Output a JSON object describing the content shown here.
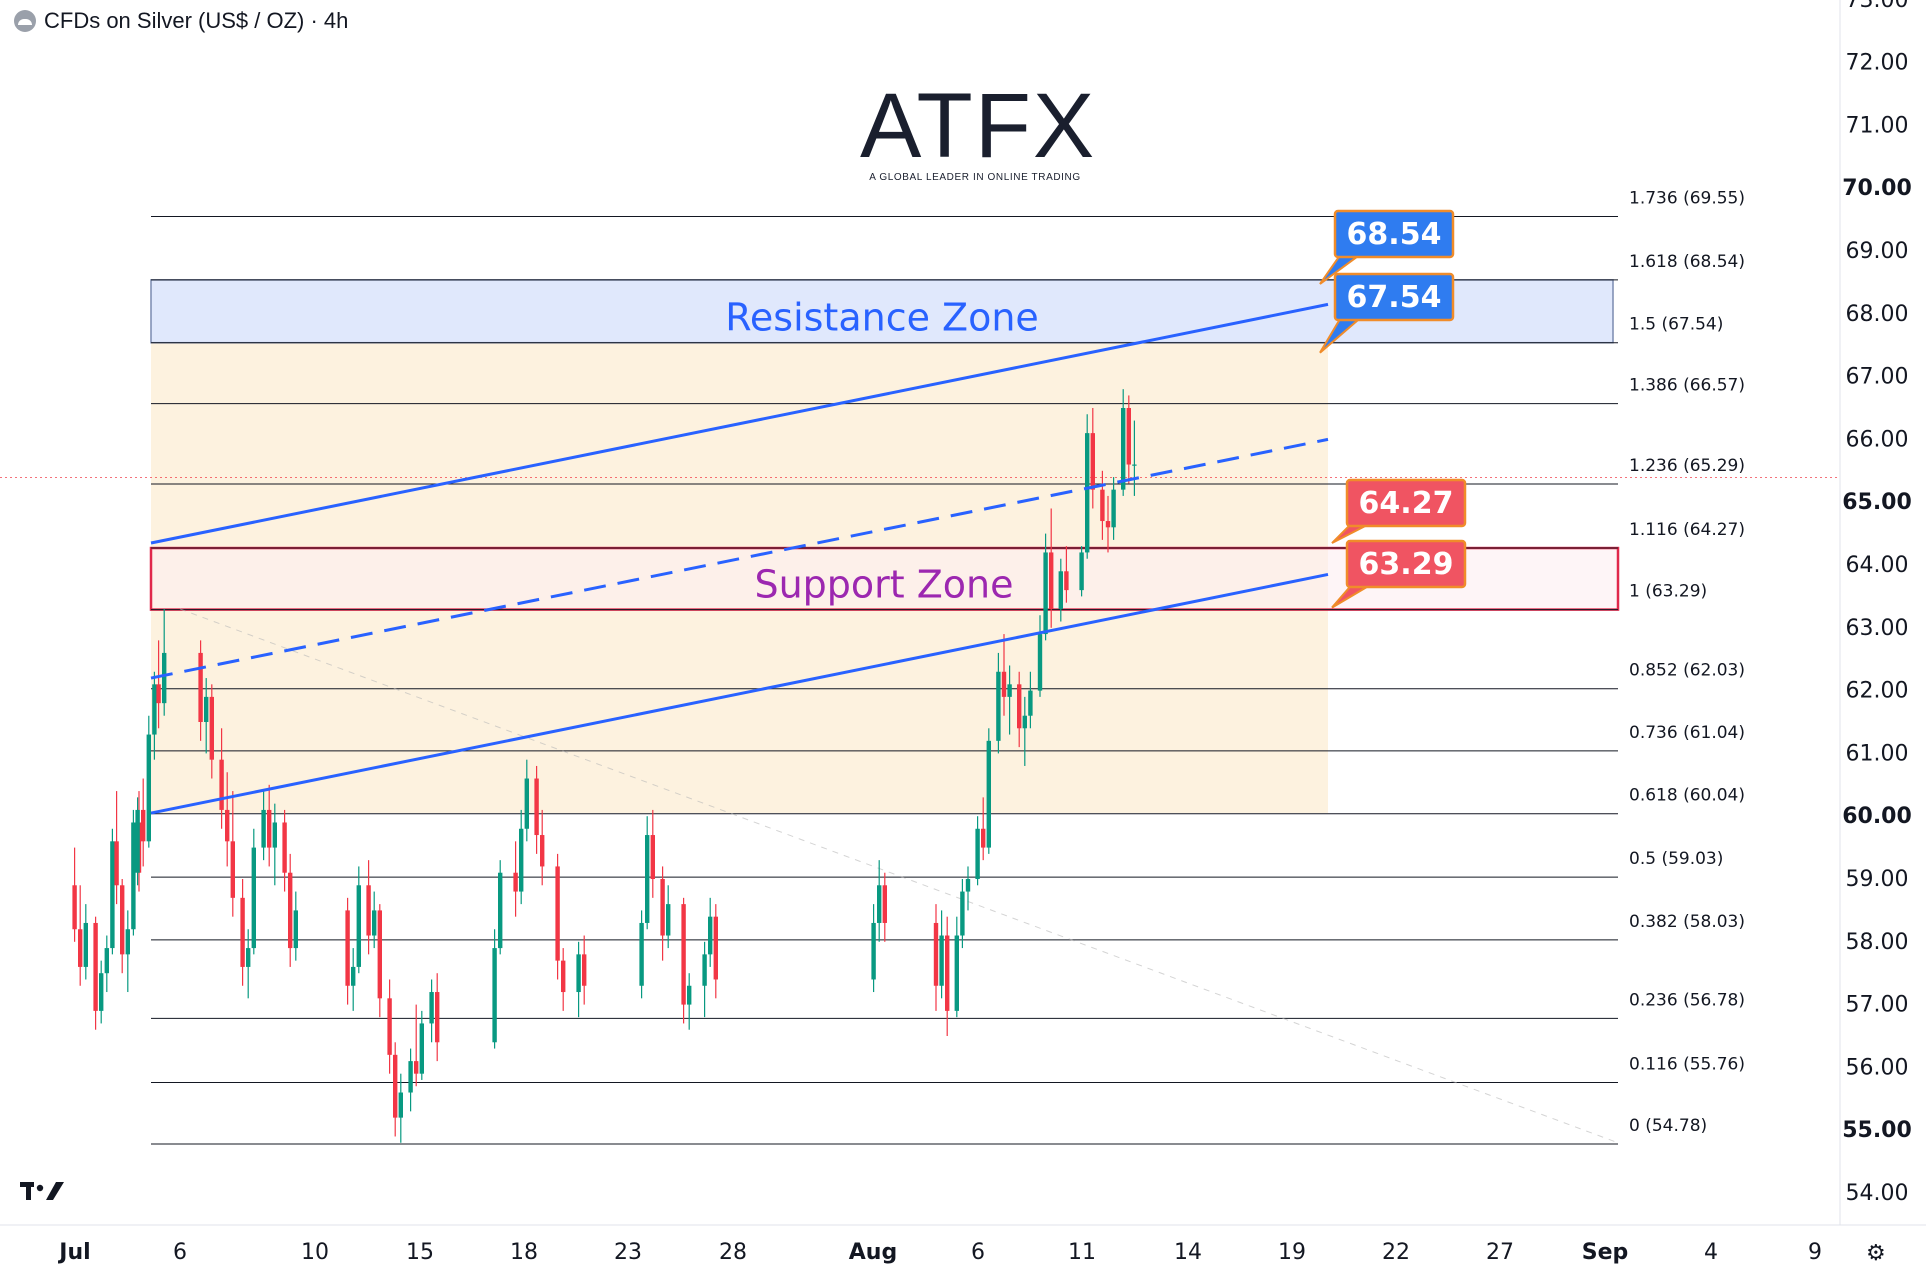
{
  "header": {
    "title": "CFDs on Silver (US$ / OZ) · 4h"
  },
  "logo": {
    "word": "ATFX",
    "tagline": "A GLOBAL LEADER IN ONLINE TRADING"
  },
  "colors": {
    "up": "#089981",
    "down": "#f23645",
    "channel": "#2962ff",
    "resistance_fill": "#dbe4fb",
    "support_fill": "#fdeef2",
    "support_border": "#e0284b",
    "label_blue": "#2f7cf0",
    "label_red": "#f05462",
    "label_border": "#f08c2a",
    "orange_fill": "#fdf1dc"
  },
  "chart_data": {
    "type": "candlestick",
    "symbol": "CFDs on Silver (US$ / OZ)",
    "timeframe": "4h",
    "ylim": [
      54.0,
      73.0
    ],
    "y_ticks": [
      "54.00",
      "55.00",
      "56.00",
      "57.00",
      "58.00",
      "59.00",
      "60.00",
      "61.00",
      "62.00",
      "63.00",
      "64.00",
      "65.00",
      "66.00",
      "67.00",
      "68.00",
      "69.00",
      "70.00",
      "71.00",
      "72.00",
      "73.00"
    ],
    "x_ticks": [
      "Jul",
      "6",
      "10",
      "15",
      "18",
      "23",
      "28",
      "Aug",
      "6",
      "11",
      "14",
      "19",
      "22",
      "27",
      "Sep",
      "4",
      "9"
    ],
    "fib_levels": [
      {
        "ratio": "1.736",
        "value": 69.55,
        "label": "1.736 (69.55)"
      },
      {
        "ratio": "1.618",
        "value": 68.54,
        "label": "1.618 (68.54)"
      },
      {
        "ratio": "1.5",
        "value": 67.54,
        "label": "1.5 (67.54)"
      },
      {
        "ratio": "1.386",
        "value": 66.57,
        "label": "1.386 (66.57)"
      },
      {
        "ratio": "1.236",
        "value": 65.29,
        "label": "1.236 (65.29)"
      },
      {
        "ratio": "1.116",
        "value": 64.27,
        "label": "1.116 (64.27)"
      },
      {
        "ratio": "1",
        "value": 63.29,
        "label": "1 (63.29)"
      },
      {
        "ratio": "0.852",
        "value": 62.03,
        "label": "0.852 (62.03)"
      },
      {
        "ratio": "0.736",
        "value": 61.04,
        "label": "0.736 (61.04)"
      },
      {
        "ratio": "0.618",
        "value": 60.04,
        "label": "0.618 (60.04)"
      },
      {
        "ratio": "0.5",
        "value": 59.03,
        "label": "0.5 (59.03)"
      },
      {
        "ratio": "0.382",
        "value": 58.03,
        "label": "0.382 (58.03)"
      },
      {
        "ratio": "0.236",
        "value": 56.78,
        "label": "0.236 (56.78)"
      },
      {
        "ratio": "0.116",
        "value": 55.76,
        "label": "0.116 (55.76)"
      },
      {
        "ratio": "0",
        "value": 54.78,
        "label": "0 (54.78)"
      }
    ],
    "zones": [
      {
        "name": "Resistance Zone",
        "low": 67.54,
        "high": 68.54
      },
      {
        "name": "Support Zone",
        "low": 63.29,
        "high": 64.27
      }
    ],
    "price_labels": [
      {
        "text": "68.54",
        "value": 68.54,
        "color": "blue"
      },
      {
        "text": "67.54",
        "value": 67.54,
        "color": "blue"
      },
      {
        "text": "64.27",
        "value": 64.27,
        "color": "red"
      },
      {
        "text": "63.29",
        "value": 63.29,
        "color": "red"
      }
    ],
    "channel": {
      "upper": [
        [
          "Jul 4",
          64.35
        ],
        [
          "Aug 20",
          68.15
        ]
      ],
      "middle": [
        [
          "Jul 4",
          62.2
        ],
        [
          "Aug 20",
          66.0
        ]
      ],
      "lower": [
        [
          "Jul 4",
          60.05
        ],
        [
          "Aug 20",
          63.85
        ]
      ]
    },
    "current_price": 65.6,
    "candles": [
      {
        "t": "Jul 1",
        "o": 58.9,
        "h": 59.5,
        "l": 58.0,
        "c": 58.2
      },
      {
        "t": "Jul 1",
        "o": 58.2,
        "h": 58.9,
        "l": 57.3,
        "c": 57.6
      },
      {
        "t": "Jul 1",
        "o": 57.6,
        "h": 58.6,
        "l": 57.4,
        "c": 58.3
      },
      {
        "t": "Jul 2",
        "o": 58.3,
        "h": 58.4,
        "l": 56.6,
        "c": 56.9
      },
      {
        "t": "Jul 2",
        "o": 56.9,
        "h": 57.7,
        "l": 56.7,
        "c": 57.5
      },
      {
        "t": "Jul 2",
        "o": 57.5,
        "h": 58.1,
        "l": 57.2,
        "c": 57.9
      },
      {
        "t": "Jul 2",
        "o": 57.9,
        "h": 59.8,
        "l": 57.8,
        "c": 59.6
      },
      {
        "t": "Jul 3",
        "o": 59.6,
        "h": 60.4,
        "l": 58.6,
        "c": 58.9
      },
      {
        "t": "Jul 3",
        "o": 58.9,
        "h": 59.0,
        "l": 57.5,
        "c": 57.8
      },
      {
        "t": "Jul 3",
        "o": 57.8,
        "h": 58.5,
        "l": 57.2,
        "c": 58.2
      },
      {
        "t": "Jul 3",
        "o": 58.2,
        "h": 60.1,
        "l": 58.1,
        "c": 59.9
      },
      {
        "t": "Jul 3",
        "o": 59.9,
        "h": 60.4,
        "l": 58.8,
        "c": 59.1
      },
      {
        "t": "Jul 4",
        "o": 59.1,
        "h": 60.3,
        "l": 58.9,
        "c": 60.1
      },
      {
        "t": "Jul 4",
        "o": 60.1,
        "h": 60.6,
        "l": 59.2,
        "c": 59.6
      },
      {
        "t": "Jul 4",
        "o": 59.6,
        "h": 61.6,
        "l": 59.5,
        "c": 61.3
      },
      {
        "t": "Jul 4",
        "o": 61.3,
        "h": 62.3,
        "l": 60.9,
        "c": 62.1
      },
      {
        "t": "Jul 5",
        "o": 62.1,
        "h": 62.8,
        "l": 61.4,
        "c": 61.8
      },
      {
        "t": "Jul 5",
        "o": 61.8,
        "h": 63.3,
        "l": 61.6,
        "c": 62.6
      },
      {
        "t": "Jul 7",
        "o": 62.6,
        "h": 62.8,
        "l": 61.2,
        "c": 61.5
      },
      {
        "t": "Jul 7",
        "o": 61.5,
        "h": 62.2,
        "l": 61.0,
        "c": 61.9
      },
      {
        "t": "Jul 7",
        "o": 61.9,
        "h": 62.1,
        "l": 60.6,
        "c": 60.9
      },
      {
        "t": "Jul 8",
        "o": 60.9,
        "h": 61.4,
        "l": 59.8,
        "c": 60.1
      },
      {
        "t": "Jul 8",
        "o": 60.1,
        "h": 60.7,
        "l": 59.2,
        "c": 59.6
      },
      {
        "t": "Jul 8",
        "o": 59.6,
        "h": 60.4,
        "l": 58.4,
        "c": 58.7
      },
      {
        "t": "Jul 9",
        "o": 58.7,
        "h": 59.0,
        "l": 57.3,
        "c": 57.6
      },
      {
        "t": "Jul 9",
        "o": 57.6,
        "h": 58.2,
        "l": 57.1,
        "c": 57.9
      },
      {
        "t": "Jul 9",
        "o": 57.9,
        "h": 59.8,
        "l": 57.8,
        "c": 59.5
      },
      {
        "t": "Jul 10",
        "o": 59.5,
        "h": 60.4,
        "l": 59.3,
        "c": 60.1
      },
      {
        "t": "Jul 10",
        "o": 60.1,
        "h": 60.5,
        "l": 59.2,
        "c": 59.5
      },
      {
        "t": "Jul 10",
        "o": 59.5,
        "h": 60.2,
        "l": 58.9,
        "c": 59.9
      },
      {
        "t": "Jul 11",
        "o": 59.9,
        "h": 60.1,
        "l": 58.8,
        "c": 59.1
      },
      {
        "t": "Jul 11",
        "o": 59.1,
        "h": 59.4,
        "l": 57.6,
        "c": 57.9
      },
      {
        "t": "Jul 11",
        "o": 57.9,
        "h": 58.8,
        "l": 57.7,
        "c": 58.5
      },
      {
        "t": "Jul 14",
        "o": 58.5,
        "h": 58.7,
        "l": 57.0,
        "c": 57.3
      },
      {
        "t": "Jul 14",
        "o": 57.3,
        "h": 57.9,
        "l": 56.9,
        "c": 57.6
      },
      {
        "t": "Jul 14",
        "o": 57.6,
        "h": 59.2,
        "l": 57.5,
        "c": 58.9
      },
      {
        "t": "Jul 15",
        "o": 58.9,
        "h": 59.3,
        "l": 57.8,
        "c": 58.1
      },
      {
        "t": "Jul 15",
        "o": 58.1,
        "h": 58.8,
        "l": 57.9,
        "c": 58.5
      },
      {
        "t": "Jul 15",
        "o": 58.5,
        "h": 58.6,
        "l": 56.8,
        "c": 57.1
      },
      {
        "t": "Jul 16",
        "o": 57.1,
        "h": 57.4,
        "l": 55.9,
        "c": 56.2
      },
      {
        "t": "Jul 16",
        "o": 56.2,
        "h": 56.4,
        "l": 54.9,
        "c": 55.2
      },
      {
        "t": "Jul 16",
        "o": 55.2,
        "h": 55.9,
        "l": 54.8,
        "c": 55.6
      },
      {
        "t": "Jul 17",
        "o": 55.6,
        "h": 56.3,
        "l": 55.3,
        "c": 56.1
      },
      {
        "t": "Jul 17",
        "o": 56.1,
        "h": 57.0,
        "l": 55.7,
        "c": 55.9
      },
      {
        "t": "Jul 17",
        "o": 55.9,
        "h": 56.9,
        "l": 55.8,
        "c": 56.7
      },
      {
        "t": "Jul 18",
        "o": 56.7,
        "h": 57.4,
        "l": 56.4,
        "c": 57.2
      },
      {
        "t": "Jul 18",
        "o": 57.2,
        "h": 57.5,
        "l": 56.1,
        "c": 56.4
      },
      {
        "t": "Jul 21",
        "o": 56.4,
        "h": 58.2,
        "l": 56.3,
        "c": 57.9
      },
      {
        "t": "Jul 21",
        "o": 57.9,
        "h": 59.3,
        "l": 57.8,
        "c": 59.1
      },
      {
        "t": "Jul 22",
        "o": 59.1,
        "h": 59.6,
        "l": 58.4,
        "c": 58.8
      },
      {
        "t": "Jul 22",
        "o": 58.8,
        "h": 60.1,
        "l": 58.6,
        "c": 59.8
      },
      {
        "t": "Jul 22",
        "o": 59.8,
        "h": 60.9,
        "l": 59.6,
        "c": 60.6
      },
      {
        "t": "Jul 23",
        "o": 60.6,
        "h": 60.8,
        "l": 59.4,
        "c": 59.7
      },
      {
        "t": "Jul 23",
        "o": 59.7,
        "h": 60.1,
        "l": 58.9,
        "c": 59.2
      },
      {
        "t": "Jul 24",
        "o": 59.2,
        "h": 59.4,
        "l": 57.4,
        "c": 57.7
      },
      {
        "t": "Jul 24",
        "o": 57.7,
        "h": 57.9,
        "l": 56.9,
        "c": 57.2
      },
      {
        "t": "Jul 25",
        "o": 57.2,
        "h": 58.0,
        "l": 56.8,
        "c": 57.8
      },
      {
        "t": "Jul 25",
        "o": 57.8,
        "h": 58.1,
        "l": 57.0,
        "c": 57.3
      },
      {
        "t": "Jul 28",
        "o": 57.3,
        "h": 58.5,
        "l": 57.1,
        "c": 58.3
      },
      {
        "t": "Jul 28",
        "o": 58.3,
        "h": 60.0,
        "l": 58.2,
        "c": 59.7
      },
      {
        "t": "Jul 28",
        "o": 59.7,
        "h": 60.1,
        "l": 58.7,
        "c": 59.0
      },
      {
        "t": "Jul 29",
        "o": 59.0,
        "h": 59.2,
        "l": 57.7,
        "c": 58.1
      },
      {
        "t": "Jul 29",
        "o": 58.1,
        "h": 58.9,
        "l": 57.9,
        "c": 58.6
      },
      {
        "t": "Jul 30",
        "o": 58.6,
        "h": 58.7,
        "l": 56.7,
        "c": 57.0
      },
      {
        "t": "Jul 30",
        "o": 57.0,
        "h": 57.5,
        "l": 56.6,
        "c": 57.3
      },
      {
        "t": "Jul 31",
        "o": 57.3,
        "h": 58.0,
        "l": 56.8,
        "c": 57.8
      },
      {
        "t": "Jul 31",
        "o": 57.8,
        "h": 58.7,
        "l": 57.6,
        "c": 58.4
      },
      {
        "t": "Jul 31",
        "o": 58.4,
        "h": 58.6,
        "l": 57.1,
        "c": 57.4
      },
      {
        "t": "Aug 1",
        "o": 57.4,
        "h": 58.6,
        "l": 57.2,
        "c": 58.3
      },
      {
        "t": "Aug 1",
        "o": 58.3,
        "h": 59.3,
        "l": 58.0,
        "c": 58.9
      },
      {
        "t": "Aug 1",
        "o": 58.9,
        "h": 59.1,
        "l": 58.0,
        "c": 58.3
      },
      {
        "t": "Aug 4",
        "o": 58.3,
        "h": 58.6,
        "l": 56.9,
        "c": 57.3
      },
      {
        "t": "Aug 4",
        "o": 57.3,
        "h": 58.5,
        "l": 57.1,
        "c": 58.1
      },
      {
        "t": "Aug 4",
        "o": 58.1,
        "h": 58.4,
        "l": 56.5,
        "c": 56.9
      },
      {
        "t": "Aug 5",
        "o": 56.9,
        "h": 58.4,
        "l": 56.8,
        "c": 58.1
      },
      {
        "t": "Aug 5",
        "o": 58.1,
        "h": 59.0,
        "l": 57.9,
        "c": 58.8
      },
      {
        "t": "Aug 5",
        "o": 58.8,
        "h": 59.2,
        "l": 58.5,
        "c": 59.0
      },
      {
        "t": "Aug 6",
        "o": 59.0,
        "h": 60.0,
        "l": 58.9,
        "c": 59.8
      },
      {
        "t": "Aug 6",
        "o": 59.8,
        "h": 60.3,
        "l": 59.3,
        "c": 59.5
      },
      {
        "t": "Aug 6",
        "o": 59.5,
        "h": 61.4,
        "l": 59.4,
        "c": 61.2
      },
      {
        "t": "Aug 7",
        "o": 61.2,
        "h": 62.6,
        "l": 61.0,
        "c": 62.3
      },
      {
        "t": "Aug 7",
        "o": 62.3,
        "h": 62.9,
        "l": 61.6,
        "c": 61.9
      },
      {
        "t": "Aug 7",
        "o": 61.9,
        "h": 62.4,
        "l": 61.3,
        "c": 62.1
      },
      {
        "t": "Aug 8",
        "o": 62.1,
        "h": 62.3,
        "l": 61.1,
        "c": 61.4
      },
      {
        "t": "Aug 8",
        "o": 61.4,
        "h": 61.9,
        "l": 60.8,
        "c": 61.6
      },
      {
        "t": "Aug 8",
        "o": 61.6,
        "h": 62.3,
        "l": 61.4,
        "c": 62.0
      },
      {
        "t": "Aug 9",
        "o": 62.0,
        "h": 63.2,
        "l": 61.9,
        "c": 62.9
      },
      {
        "t": "Aug 9",
        "o": 62.9,
        "h": 64.5,
        "l": 62.8,
        "c": 64.2
      },
      {
        "t": "Aug 9",
        "o": 64.2,
        "h": 64.9,
        "l": 63.0,
        "c": 63.3
      },
      {
        "t": "Aug 10",
        "o": 63.3,
        "h": 64.1,
        "l": 63.1,
        "c": 63.9
      },
      {
        "t": "Aug 10",
        "o": 63.9,
        "h": 64.3,
        "l": 63.4,
        "c": 63.6
      },
      {
        "t": "Aug 11",
        "o": 63.6,
        "h": 64.3,
        "l": 63.5,
        "c": 64.2
      },
      {
        "t": "Aug 11",
        "o": 64.2,
        "h": 66.4,
        "l": 64.1,
        "c": 66.1
      },
      {
        "t": "Aug 11",
        "o": 66.1,
        "h": 66.5,
        "l": 64.9,
        "c": 65.2
      },
      {
        "t": "Aug 12",
        "o": 65.2,
        "h": 65.5,
        "l": 64.4,
        "c": 64.7
      },
      {
        "t": "Aug 12",
        "o": 64.7,
        "h": 65.1,
        "l": 64.2,
        "c": 64.6
      },
      {
        "t": "Aug 12",
        "o": 64.6,
        "h": 65.4,
        "l": 64.4,
        "c": 65.2
      },
      {
        "t": "Aug 13",
        "o": 65.2,
        "h": 66.8,
        "l": 65.1,
        "c": 66.5
      },
      {
        "t": "Aug 13",
        "o": 66.5,
        "h": 66.7,
        "l": 65.3,
        "c": 65.6
      },
      {
        "t": "Aug 13",
        "o": 65.6,
        "h": 66.3,
        "l": 65.1,
        "c": 65.6
      }
    ]
  }
}
